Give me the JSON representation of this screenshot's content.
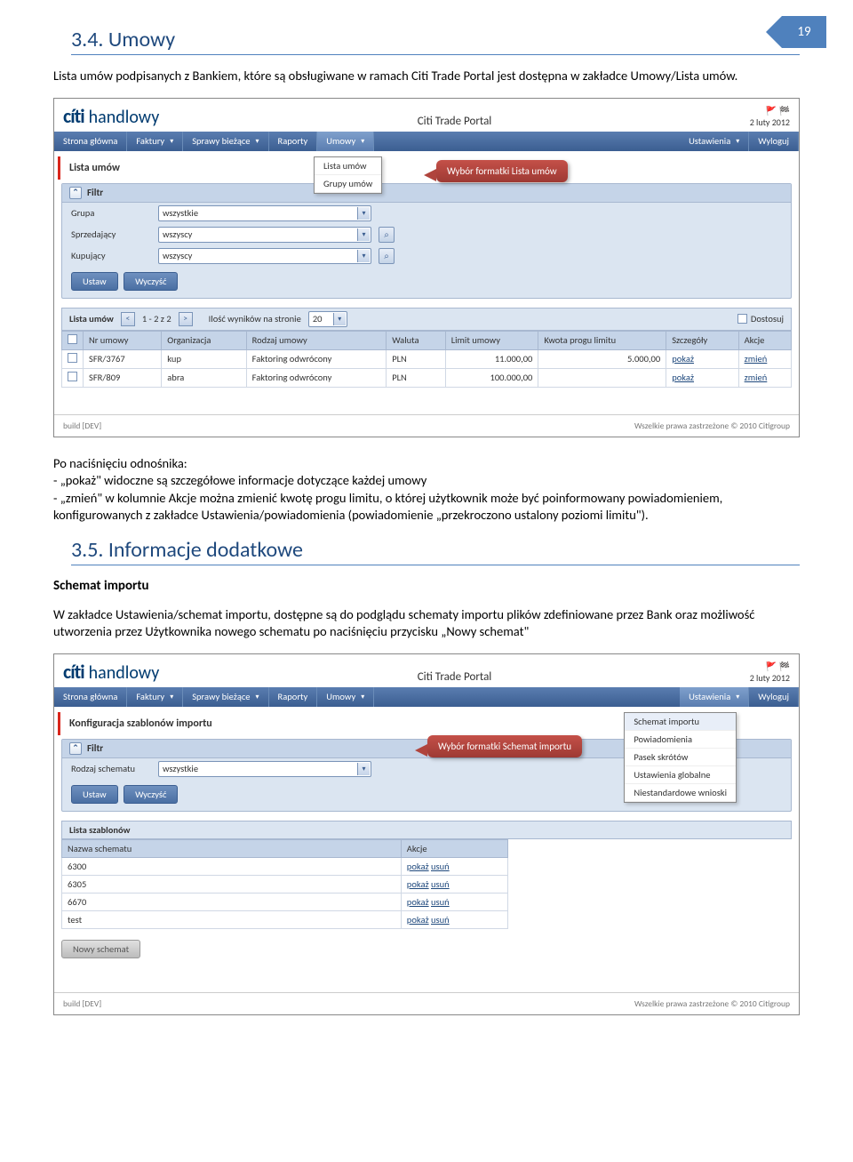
{
  "page_number": "19",
  "section_34": {
    "heading": "3.4. Umowy",
    "intro": "Lista umów podpisanych z Bankiem, które są obsługiwane w ramach Citi Trade Portal jest dostępna w zakładce Umowy/Lista umów.",
    "after_shot_1": "Po naciśnięciu odnośnika:",
    "after_shot_2": "- „pokaż\" widoczne są szczegółowe informacje dotyczące każdej umowy",
    "after_shot_3": "- „zmień\" w kolumnie Akcje można zmienić kwotę progu limitu, o której użytkownik może być poinformowany powiadomieniem, konfigurowanych z zakładce Ustawienia/powiadomienia (powiadomienie „przekroczono ustalony poziomi limitu\")."
  },
  "section_35": {
    "heading": "3.5. Informacje dodatkowe",
    "sub": "Schemat importu",
    "body": "W zakładce Ustawienia/schemat importu, dostępne są do podglądu schematy importu plików zdefiniowane przez Bank oraz możliwość utworzenia przez Użytkownika nowego schematu po naciśnięciu przycisku „Nowy schemat\""
  },
  "portal": {
    "title": "Citi Trade Portal",
    "date": "2 luty 2012",
    "logo_citi": "cíti",
    "logo_hand": "handlowy",
    "footer_left": "build [DEV]",
    "footer_right": "Wszelkie prawa zastrzeżone © 2010 Citigroup"
  },
  "nav": {
    "items": [
      "Strona główna",
      "Faktury",
      "Sprawy bieżące",
      "Raporty",
      "Umowy"
    ],
    "right": [
      "Ustawienia",
      "Wyloguj"
    ]
  },
  "shot1": {
    "panel_title": "Lista umów",
    "dropdown": [
      "Lista umów",
      "Grupy umów"
    ],
    "callout": "Wybór formatki Lista umów",
    "filter_label": "Filtr",
    "filters": [
      {
        "label": "Grupa",
        "value": "wszystkie",
        "extra": false
      },
      {
        "label": "Sprzedający",
        "value": "wszyscy",
        "extra": true
      },
      {
        "label": "Kupujący",
        "value": "wszyscy",
        "extra": true
      }
    ],
    "btn_set": "Ustaw",
    "btn_clear": "Wyczyść",
    "list_label": "Lista umów",
    "pager_text": "1 - 2 z 2",
    "perpage_label": "Ilość wyników na stronie",
    "perpage_value": "20",
    "adjust": "Dostosuj",
    "columns": [
      "Nr umowy",
      "Organizacja",
      "Rodzaj umowy",
      "Waluta",
      "Limit umowy",
      "Kwota progu limitu",
      "Szczegóły",
      "Akcje"
    ],
    "rows": [
      {
        "nr": "SFR/3767",
        "org": "kup",
        "rodzaj": "Faktoring odwrócony",
        "wal": "PLN",
        "limit": "11.000,00",
        "prog": "5.000,00",
        "det": "pokaż",
        "act": "zmień"
      },
      {
        "nr": "SFR/809",
        "org": "abra",
        "rodzaj": "Faktoring odwrócony",
        "wal": "PLN",
        "limit": "100.000,00",
        "prog": "",
        "det": "pokaż",
        "act": "zmień"
      }
    ]
  },
  "shot2": {
    "panel_title": "Konfiguracja szablonów importu",
    "dropdown": [
      "Schemat importu",
      "Powiadomienia",
      "Pasek skrótów",
      "Ustawienia globalne",
      "Niestandardowe wnioski"
    ],
    "callout": "Wybór formatki Schemat importu",
    "filter_label": "Filtr",
    "filter_schema_label": "Rodzaj schematu",
    "filter_schema_value": "wszystkie",
    "btn_set": "Ustaw",
    "btn_clear": "Wyczyść",
    "list_label": "Lista szablonów",
    "columns": [
      "Nazwa schematu",
      "Akcje"
    ],
    "rows": [
      {
        "n": "6300",
        "a1": "pokaż",
        "a2": "usuń"
      },
      {
        "n": "6305",
        "a1": "pokaż",
        "a2": "usuń"
      },
      {
        "n": "6670",
        "a1": "pokaż",
        "a2": "usuń"
      },
      {
        "n": "test",
        "a1": "pokaż",
        "a2": "usuń"
      }
    ],
    "new_btn": "Nowy schemat"
  }
}
